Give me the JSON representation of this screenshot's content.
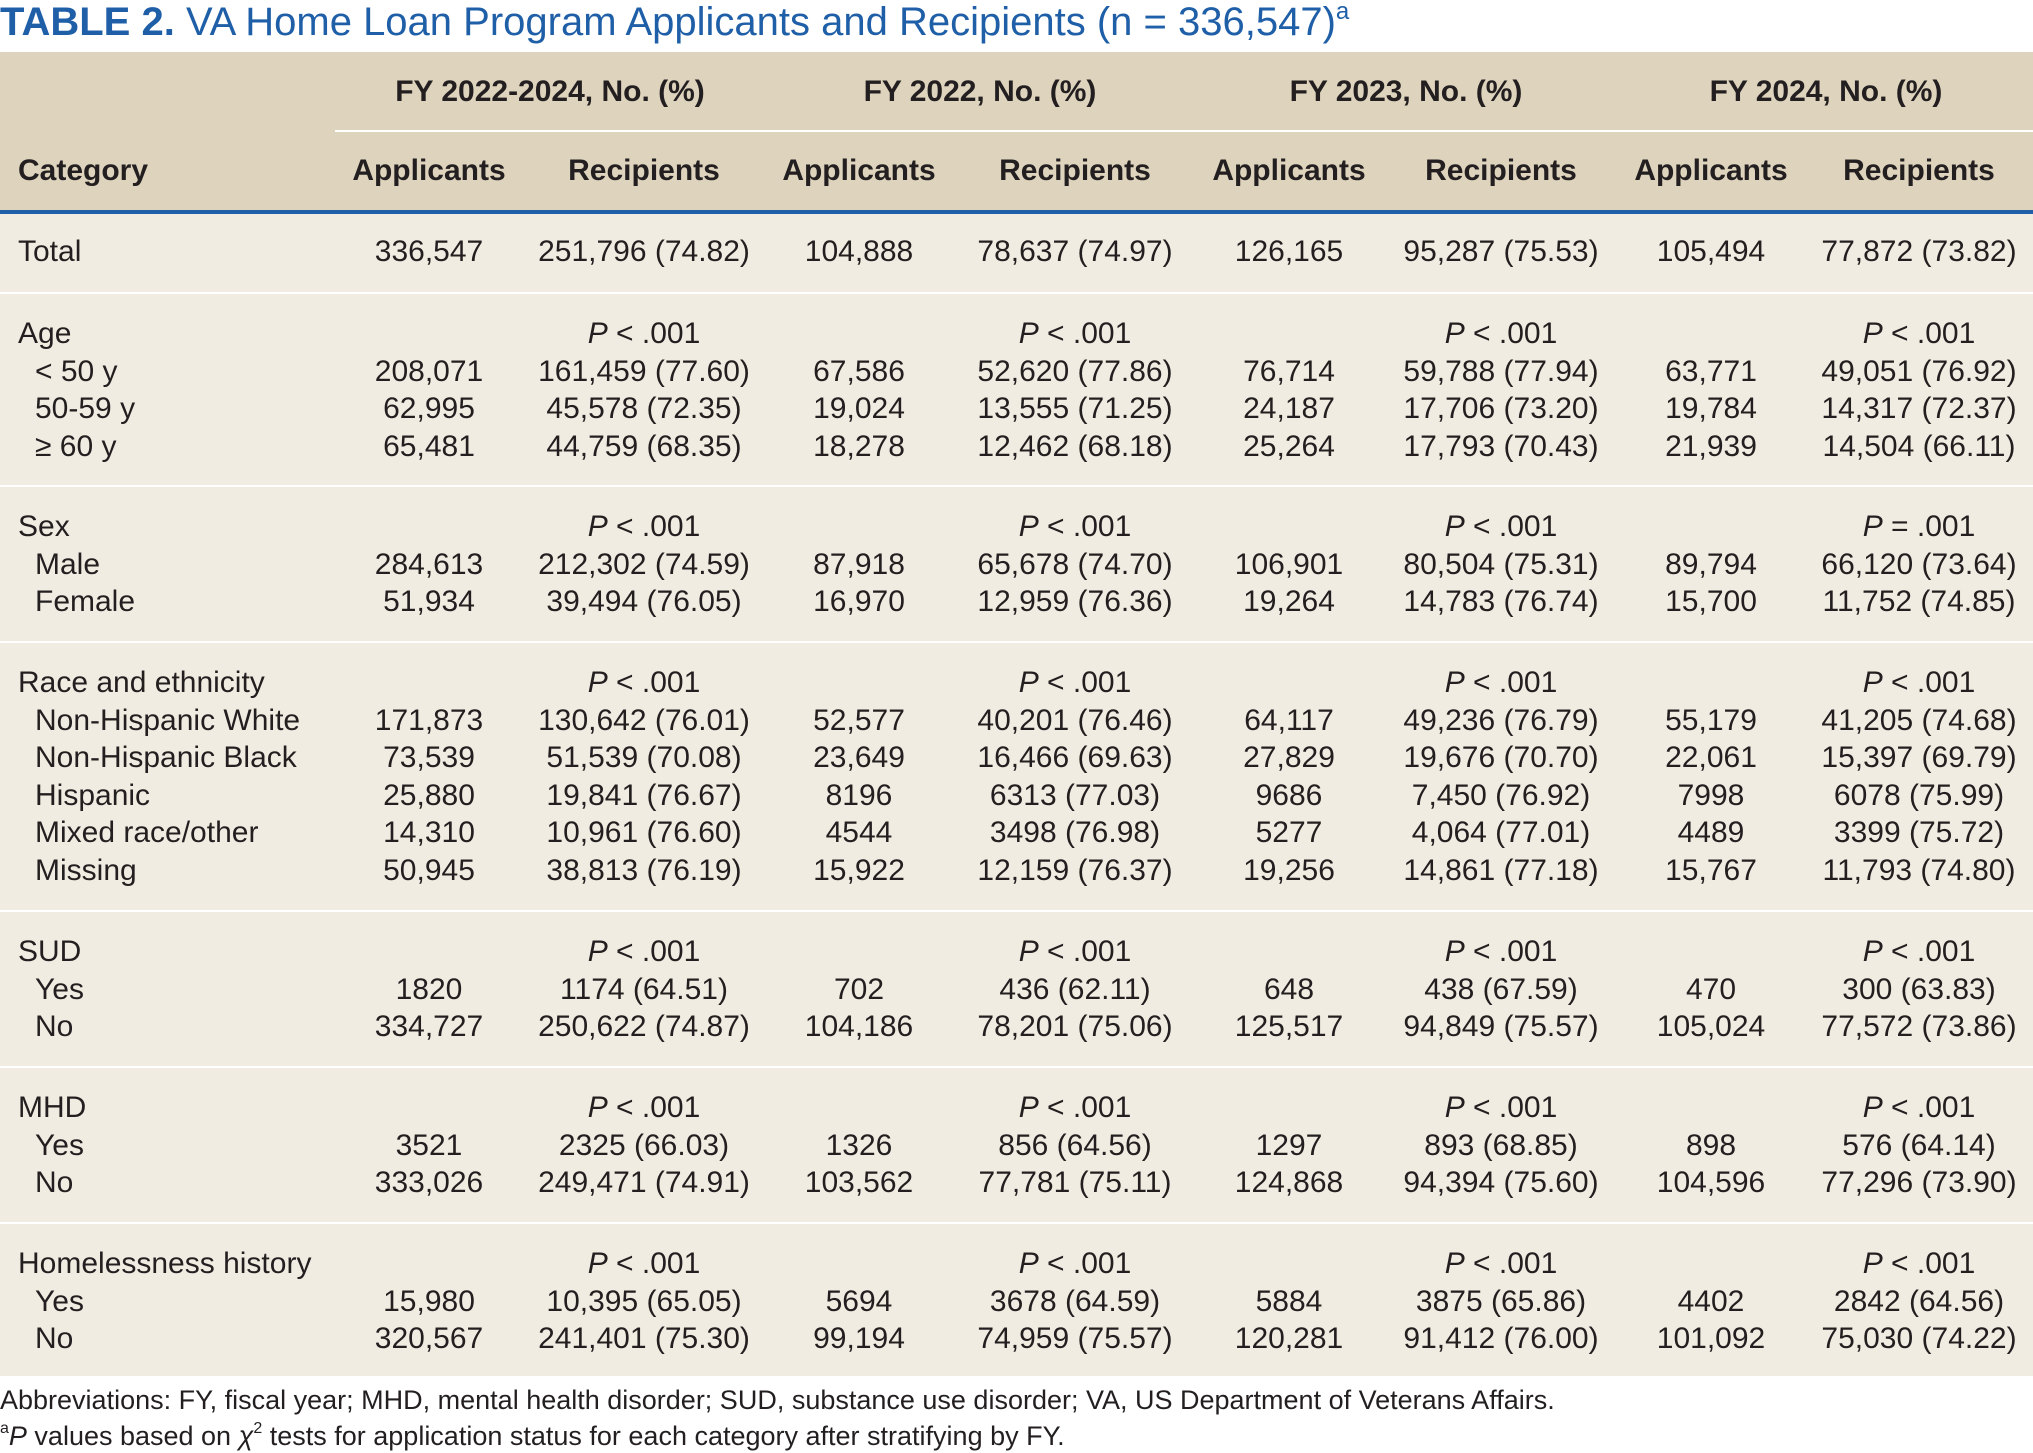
{
  "title": {
    "label": "TABLE 2.",
    "text": "VA Home Loan Program Applicants and Recipients (n = 336,547)",
    "superscript": "a"
  },
  "header": {
    "category_label": "Category",
    "groups": [
      "FY 2022-2024, No. (%)",
      "FY 2022, No. (%)",
      "FY 2023, No. (%)",
      "FY 2024, No. (%)"
    ],
    "applicants_label": "Applicants",
    "recipients_label": "Recipients"
  },
  "sections": [
    {
      "name": "Total",
      "pvalues": null,
      "values": [
        "336,547",
        "251,796 (74.82)",
        "104,888",
        "78,637 (74.97)",
        "126,165",
        "95,287 (75.53)",
        "105,494",
        "77,872 (73.82)"
      ],
      "rows": []
    },
    {
      "name": "Age",
      "pvalues": [
        {
          "op": " < .001"
        },
        {
          "op": " < .001"
        },
        {
          "op": " < .001"
        },
        {
          "op": " < .001"
        }
      ],
      "rows": [
        {
          "label": "< 50 y",
          "values": [
            "208,071",
            "161,459 (77.60)",
            "67,586",
            "52,620 (77.86)",
            "76,714",
            "59,788 (77.94)",
            "63,771",
            "49,051 (76.92)"
          ]
        },
        {
          "label": "50-59 y",
          "values": [
            "62,995",
            "45,578 (72.35)",
            "19,024",
            "13,555 (71.25)",
            "24,187",
            "17,706 (73.20)",
            "19,784",
            "14,317 (72.37)"
          ]
        },
        {
          "label": "≥ 60 y",
          "values": [
            "65,481",
            "44,759 (68.35)",
            "18,278",
            "12,462 (68.18)",
            "25,264",
            "17,793 (70.43)",
            "21,939",
            "14,504 (66.11)"
          ]
        }
      ]
    },
    {
      "name": "Sex",
      "pvalues": [
        {
          "op": " < .001"
        },
        {
          "op": " < .001"
        },
        {
          "op": " < .001"
        },
        {
          "op": " = .001"
        }
      ],
      "rows": [
        {
          "label": "Male",
          "values": [
            "284,613",
            "212,302 (74.59)",
            "87,918",
            "65,678 (74.70)",
            "106,901",
            "80,504 (75.31)",
            "89,794",
            "66,120 (73.64)"
          ]
        },
        {
          "label": "Female",
          "values": [
            "51,934",
            "39,494 (76.05)",
            "16,970",
            "12,959 (76.36)",
            "19,264",
            "14,783 (76.74)",
            "15,700",
            "11,752 (74.85)"
          ]
        }
      ]
    },
    {
      "name": "Race and ethnicity",
      "pvalues": [
        {
          "op": " < .001"
        },
        {
          "op": " < .001"
        },
        {
          "op": " < .001"
        },
        {
          "op": " < .001"
        }
      ],
      "rows": [
        {
          "label": "Non-Hispanic White",
          "values": [
            "171,873",
            "130,642 (76.01)",
            "52,577",
            "40,201 (76.46)",
            "64,117",
            "49,236 (76.79)",
            "55,179",
            "41,205 (74.68)"
          ]
        },
        {
          "label": "Non-Hispanic Black",
          "values": [
            "73,539",
            "51,539 (70.08)",
            "23,649",
            "16,466 (69.63)",
            "27,829",
            "19,676 (70.70)",
            "22,061",
            "15,397 (69.79)"
          ]
        },
        {
          "label": "Hispanic",
          "values": [
            "25,880",
            "19,841 (76.67)",
            "8196",
            "6313 (77.03)",
            "9686",
            "7,450 (76.92)",
            "7998",
            "6078 (75.99)"
          ]
        },
        {
          "label": "Mixed race/other",
          "values": [
            "14,310",
            "10,961 (76.60)",
            "4544",
            "3498 (76.98)",
            "5277",
            "4,064 (77.01)",
            "4489",
            "3399 (75.72)"
          ]
        },
        {
          "label": "Missing",
          "values": [
            "50,945",
            "38,813 (76.19)",
            "15,922",
            "12,159 (76.37)",
            "19,256",
            "14,861 (77.18)",
            "15,767",
            "11,793 (74.80)"
          ]
        }
      ]
    },
    {
      "name": "SUD",
      "pvalues": [
        {
          "op": " < .001"
        },
        {
          "op": " < .001"
        },
        {
          "op": " < .001"
        },
        {
          "op": " < .001"
        }
      ],
      "rows": [
        {
          "label": "Yes",
          "values": [
            "1820",
            "1174 (64.51)",
            "702",
            "436 (62.11)",
            "648",
            "438 (67.59)",
            "470",
            "300 (63.83)"
          ]
        },
        {
          "label": "No",
          "values": [
            "334,727",
            "250,622 (74.87)",
            "104,186",
            "78,201 (75.06)",
            "125,517",
            "94,849 (75.57)",
            "105,024",
            "77,572 (73.86)"
          ]
        }
      ]
    },
    {
      "name": "MHD",
      "pvalues": [
        {
          "op": " < .001"
        },
        {
          "op": " < .001"
        },
        {
          "op": " < .001"
        },
        {
          "op": " < .001"
        }
      ],
      "rows": [
        {
          "label": "Yes",
          "values": [
            "3521",
            "2325 (66.03)",
            "1326",
            "856 (64.56)",
            "1297",
            "893 (68.85)",
            "898",
            "576 (64.14)"
          ]
        },
        {
          "label": "No",
          "values": [
            "333,026",
            "249,471 (74.91)",
            "103,562",
            "77,781 (75.11)",
            "124,868",
            "94,394 (75.60)",
            "104,596",
            "77,296 (73.90)"
          ]
        }
      ]
    },
    {
      "name": "Homelessness history",
      "pvalues": [
        {
          "op": " < .001"
        },
        {
          "op": " < .001"
        },
        {
          "op": " < .001"
        },
        {
          "op": " < .001"
        }
      ],
      "rows": [
        {
          "label": "Yes",
          "values": [
            "15,980",
            "10,395 (65.05)",
            "5694",
            "3678 (64.59)",
            "5884",
            "3875 (65.86)",
            "4402",
            "2842 (64.56)"
          ]
        },
        {
          "label": "No",
          "values": [
            "320,567",
            "241,401 (75.30)",
            "99,194",
            "74,959 (75.57)",
            "120,281",
            "91,412 (76.00)",
            "101,092",
            "75,030 (74.22)"
          ]
        }
      ]
    }
  ],
  "p_symbol": "P",
  "footnotes": {
    "abbreviations": "Abbreviations: FY, fiscal year; MHD, mental health disorder; SUD, substance use disorder; VA, US Department of Veterans Affairs.",
    "note_marker": "a",
    "note_p": "P",
    "note_text_1": " values based on ",
    "note_chi": "χ",
    "note_chi_sup": "2",
    "note_text_2": " tests for application status for each category after stratifying by FY."
  },
  "colors": {
    "accent": "#1f5fa8",
    "panel": "#f1ece1",
    "header": "#ded3bd"
  }
}
